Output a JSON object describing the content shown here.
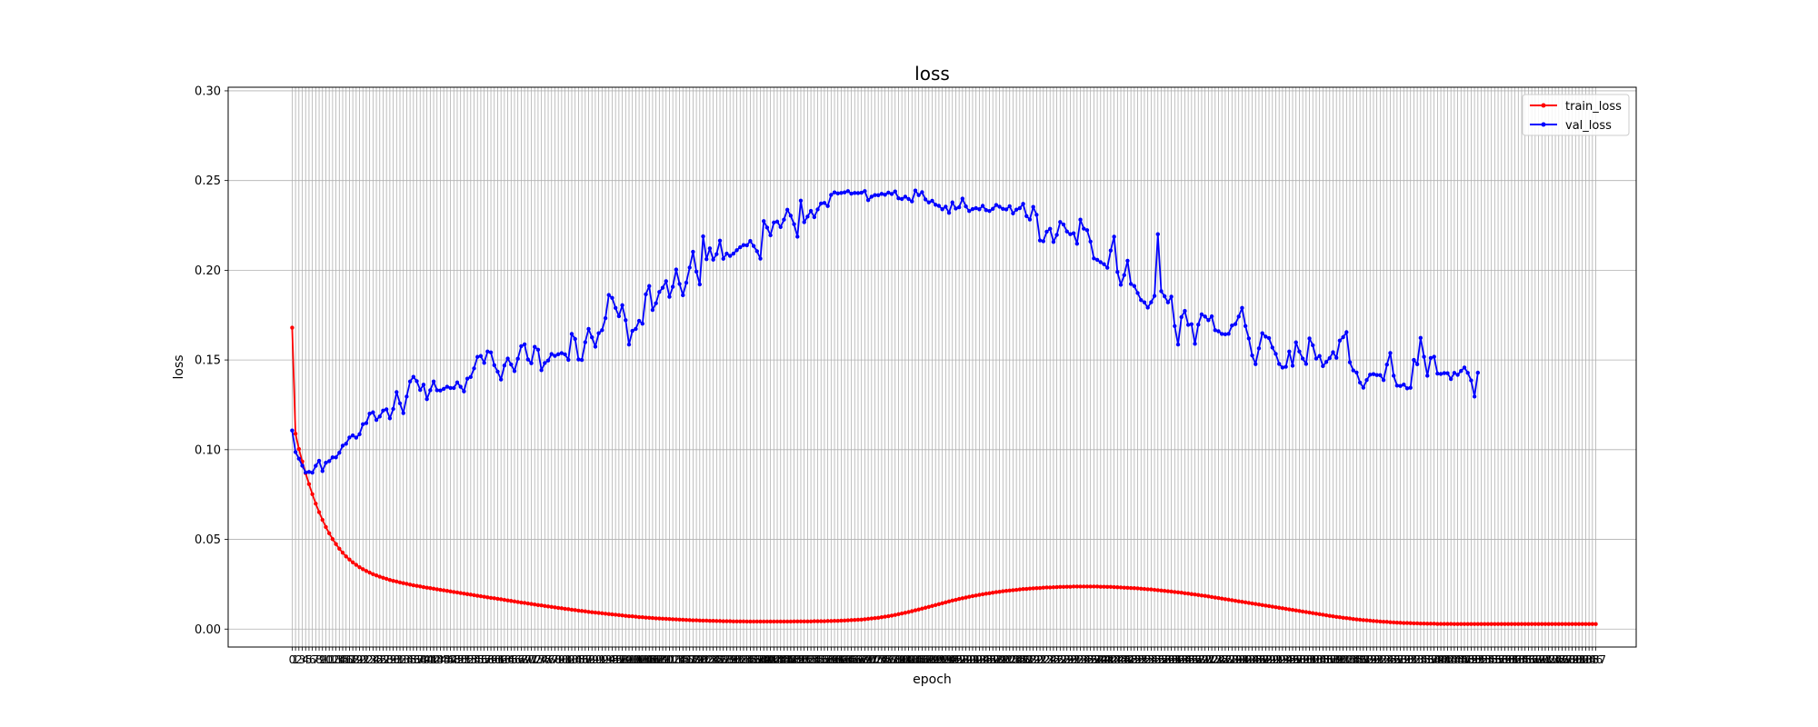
{
  "chart_data": {
    "type": "line",
    "title": "loss",
    "xlabel": "epoch",
    "ylabel": "loss",
    "xlim": [
      -19,
      399
    ],
    "ylim": [
      -0.01,
      0.302
    ],
    "grid": true,
    "legend_position": "top-right",
    "yticks": [
      0.0,
      0.05,
      0.1,
      0.15,
      0.2,
      0.25,
      0.3
    ],
    "ytick_labels": [
      "0.00",
      "0.05",
      "0.10",
      "0.15",
      "0.20",
      "0.25",
      "0.30"
    ],
    "x_step": 1,
    "series": [
      {
        "name": "train_loss",
        "color": "#ff0000",
        "values": [
          0.168,
          0.1089,
          0.1004,
          0.0934,
          0.0869,
          0.0808,
          0.0752,
          0.0699,
          0.0652,
          0.0609,
          0.0569,
          0.0534,
          0.0502,
          0.0474,
          0.0448,
          0.0426,
          0.0405,
          0.0388,
          0.0372,
          0.0358,
          0.0345,
          0.0334,
          0.0324,
          0.0315,
          0.0306,
          0.0299,
          0.0292,
          0.0286,
          0.028,
          0.0274,
          0.0269,
          0.0265,
          0.026,
          0.0256,
          0.0252,
          0.0248,
          0.0244,
          0.0241,
          0.0238,
          0.0234,
          0.0231,
          0.0228,
          0.0225,
          0.0222,
          0.0219,
          0.0216,
          0.0213,
          0.021,
          0.0207,
          0.0204,
          0.0201,
          0.0198,
          0.0195,
          0.0192,
          0.0189,
          0.0186,
          0.0183,
          0.018,
          0.0177,
          0.0174,
          0.0172,
          0.0169,
          0.0166,
          0.0163,
          0.016,
          0.0157,
          0.0154,
          0.0151,
          0.0148,
          0.0146,
          0.0143,
          0.014,
          0.0137,
          0.0134,
          0.0132,
          0.0129,
          0.0126,
          0.0124,
          0.0121,
          0.0118,
          0.0116,
          0.0113,
          0.0111,
          0.0108,
          0.0106,
          0.0103,
          0.0101,
          0.0099,
          0.0096,
          0.0094,
          0.0092,
          0.009,
          0.0088,
          0.0086,
          0.0084,
          0.0082,
          0.008,
          0.0078,
          0.0076,
          0.0074,
          0.0072,
          0.0071,
          0.0069,
          0.0067,
          0.0066,
          0.0064,
          0.0063,
          0.0062,
          0.006,
          0.0059,
          0.0058,
          0.0057,
          0.0056,
          0.0055,
          0.0054,
          0.0053,
          0.0052,
          0.0051,
          0.005,
          0.0049,
          0.0049,
          0.0048,
          0.0047,
          0.0047,
          0.0046,
          0.0046,
          0.0045,
          0.0045,
          0.0044,
          0.0044,
          0.0044,
          0.0043,
          0.0043,
          0.0043,
          0.0043,
          0.0042,
          0.0042,
          0.0042,
          0.0042,
          0.0042,
          0.0042,
          0.0042,
          0.0042,
          0.0042,
          0.0042,
          0.0042,
          0.0042,
          0.0042,
          0.0042,
          0.0043,
          0.0043,
          0.0043,
          0.0043,
          0.0043,
          0.0043,
          0.0044,
          0.0044,
          0.0044,
          0.0044,
          0.0045,
          0.0045,
          0.0046,
          0.0046,
          0.0047,
          0.0048,
          0.0049,
          0.005,
          0.0051,
          0.0052,
          0.0053,
          0.0055,
          0.0057,
          0.0059,
          0.0061,
          0.0063,
          0.0066,
          0.0069,
          0.0072,
          0.0075,
          0.0079,
          0.0083,
          0.0087,
          0.0091,
          0.0095,
          0.01,
          0.0105,
          0.0109,
          0.0114,
          0.0119,
          0.0124,
          0.0129,
          0.0134,
          0.0139,
          0.0144,
          0.0149,
          0.0154,
          0.0159,
          0.0163,
          0.0168,
          0.0172,
          0.0176,
          0.018,
          0.0184,
          0.0187,
          0.0191,
          0.0194,
          0.0197,
          0.02,
          0.0203,
          0.0206,
          0.0208,
          0.0211,
          0.0213,
          0.0215,
          0.0217,
          0.0219,
          0.0221,
          0.0223,
          0.0224,
          0.0226,
          0.0227,
          0.0228,
          0.0229,
          0.0231,
          0.0232,
          0.0232,
          0.0233,
          0.0234,
          0.0235,
          0.0235,
          0.0236,
          0.0236,
          0.0237,
          0.0237,
          0.0237,
          0.0237,
          0.0237,
          0.0237,
          0.0237,
          0.0237,
          0.0236,
          0.0236,
          0.0235,
          0.0235,
          0.0234,
          0.0233,
          0.0232,
          0.0231,
          0.023,
          0.0229,
          0.0228,
          0.0227,
          0.0225,
          0.0224,
          0.0222,
          0.0221,
          0.0219,
          0.0217,
          0.0215,
          0.0213,
          0.0211,
          0.0209,
          0.0207,
          0.0205,
          0.0203,
          0.02,
          0.0198,
          0.0195,
          0.0193,
          0.019,
          0.0187,
          0.0185,
          0.0182,
          0.0179,
          0.0176,
          0.0173,
          0.017,
          0.0167,
          0.0164,
          0.0161,
          0.0158,
          0.0155,
          0.0152,
          0.0149,
          0.0146,
          0.0143,
          0.014,
          0.0137,
          0.0134,
          0.0131,
          0.0128,
          0.0125,
          0.0122,
          0.0119,
          0.0116,
          0.0113,
          0.011,
          0.0107,
          0.0104,
          0.0101,
          0.0098,
          0.0095,
          0.0092,
          0.0089,
          0.0086,
          0.0083,
          0.008,
          0.0077,
          0.0074,
          0.0071,
          0.0068,
          0.0066,
          0.0063,
          0.0061,
          0.0059,
          0.0056,
          0.0054,
          0.0052,
          0.005,
          0.0049,
          0.0047,
          0.0045,
          0.0044,
          0.0042,
          0.0041,
          0.004,
          0.0038,
          0.0037,
          0.0036,
          0.0035,
          0.0034,
          0.0034,
          0.0033,
          0.0032,
          0.0032,
          0.0031,
          0.0031,
          0.003,
          0.003,
          0.003,
          0.0029,
          0.0029,
          0.0029,
          0.0029,
          0.0029,
          0.0028,
          0.0028,
          0.0028,
          0.0028,
          0.0028,
          0.0028,
          0.0028,
          0.0028,
          0.0028,
          0.0028,
          0.0028,
          0.0028,
          0.0028,
          0.0028,
          0.0028,
          0.0028,
          0.0028,
          0.0028,
          0.0028,
          0.0028,
          0.0028,
          0.0028,
          0.0028,
          0.0028,
          0.0028,
          0.0028,
          0.0028,
          0.0028,
          0.0028,
          0.0028,
          0.0028,
          0.0028,
          0.0028,
          0.0028,
          0.0028,
          0.0028,
          0.0028,
          0.0028,
          0.0028,
          0.0028,
          0.0028,
          0.0028,
          0.0028
        ]
      },
      {
        "name": "val_loss",
        "color": "#0000ff",
        "values": [
          0.1107,
          0.0987,
          0.095,
          0.0911,
          0.0873,
          0.0876,
          0.0872,
          0.091,
          0.0938,
          0.0881,
          0.0927,
          0.0936,
          0.0957,
          0.0957,
          0.0983,
          0.1022,
          0.1033,
          0.1068,
          0.1079,
          0.1067,
          0.1086,
          0.1142,
          0.1148,
          0.1201,
          0.1208,
          0.1166,
          0.1185,
          0.1218,
          0.1225,
          0.1175,
          0.1227,
          0.1321,
          0.1258,
          0.1204,
          0.1296,
          0.138,
          0.1406,
          0.1382,
          0.1333,
          0.1362,
          0.1282,
          0.1331,
          0.138,
          0.1331,
          0.133,
          0.1339,
          0.1351,
          0.1344,
          0.1344,
          0.1375,
          0.1351,
          0.1325,
          0.1396,
          0.1405,
          0.1453,
          0.1517,
          0.1522,
          0.1484,
          0.1547,
          0.1542,
          0.1471,
          0.1435,
          0.1391,
          0.1469,
          0.1508,
          0.1475,
          0.1438,
          0.1507,
          0.1577,
          0.1587,
          0.1503,
          0.1482,
          0.1573,
          0.1557,
          0.1443,
          0.1483,
          0.1497,
          0.1533,
          0.1523,
          0.1532,
          0.1538,
          0.1531,
          0.1501,
          0.1645,
          0.1617,
          0.1503,
          0.15,
          0.1599,
          0.1673,
          0.1626,
          0.1574,
          0.1649,
          0.1666,
          0.1733,
          0.1862,
          0.1846,
          0.179,
          0.1744,
          0.1805,
          0.1722,
          0.1586,
          0.1662,
          0.1673,
          0.1718,
          0.1702,
          0.1866,
          0.1912,
          0.1779,
          0.1816,
          0.1879,
          0.1902,
          0.1939,
          0.1852,
          0.1908,
          0.2004,
          0.1924,
          0.1861,
          0.1931,
          0.2015,
          0.2103,
          0.1992,
          0.1921,
          0.2189,
          0.2062,
          0.2122,
          0.2059,
          0.209,
          0.2165,
          0.2064,
          0.2093,
          0.208,
          0.2093,
          0.2112,
          0.2128,
          0.214,
          0.2139,
          0.2163,
          0.2135,
          0.2106,
          0.2065,
          0.2274,
          0.2238,
          0.2195,
          0.2266,
          0.2271,
          0.2241,
          0.2282,
          0.2337,
          0.2304,
          0.2257,
          0.2187,
          0.2388,
          0.2268,
          0.2299,
          0.2331,
          0.2296,
          0.2339,
          0.2372,
          0.2375,
          0.2358,
          0.242,
          0.2434,
          0.2428,
          0.2431,
          0.2434,
          0.2441,
          0.2427,
          0.2431,
          0.243,
          0.2432,
          0.2441,
          0.2391,
          0.241,
          0.2419,
          0.2418,
          0.2426,
          0.2421,
          0.2433,
          0.2425,
          0.2439,
          0.2401,
          0.2397,
          0.241,
          0.2397,
          0.2384,
          0.2444,
          0.2419,
          0.2435,
          0.2395,
          0.2378,
          0.2387,
          0.2365,
          0.2359,
          0.234,
          0.2354,
          0.232,
          0.2378,
          0.2344,
          0.2351,
          0.2399,
          0.2356,
          0.233,
          0.2341,
          0.2346,
          0.234,
          0.2359,
          0.2335,
          0.233,
          0.2342,
          0.2364,
          0.2354,
          0.2342,
          0.2339,
          0.2357,
          0.2317,
          0.2338,
          0.2346,
          0.237,
          0.2302,
          0.2283,
          0.2353,
          0.2309,
          0.2166,
          0.2162,
          0.2215,
          0.2231,
          0.2158,
          0.2197,
          0.2269,
          0.2255,
          0.2216,
          0.2201,
          0.2206,
          0.2148,
          0.2282,
          0.2232,
          0.2223,
          0.216,
          0.2066,
          0.2058,
          0.2045,
          0.2034,
          0.2014,
          0.211,
          0.2187,
          0.199,
          0.1919,
          0.1973,
          0.2053,
          0.1924,
          0.1912,
          0.1873,
          0.1834,
          0.1821,
          0.1792,
          0.1822,
          0.1857,
          0.2201,
          0.1883,
          0.1855,
          0.1821,
          0.1853,
          0.1689,
          0.1586,
          0.1739,
          0.1773,
          0.1696,
          0.1699,
          0.159,
          0.1697,
          0.1754,
          0.1742,
          0.1722,
          0.1743,
          0.1666,
          0.166,
          0.1645,
          0.1643,
          0.1646,
          0.1692,
          0.17,
          0.1742,
          0.179,
          0.1689,
          0.162,
          0.1525,
          0.1477,
          0.1565,
          0.1649,
          0.163,
          0.1622,
          0.1569,
          0.1534,
          0.1478,
          0.1458,
          0.1462,
          0.1547,
          0.1468,
          0.1598,
          0.1547,
          0.1508,
          0.1478,
          0.162,
          0.1582,
          0.1508,
          0.1522,
          0.1466,
          0.1489,
          0.151,
          0.1543,
          0.1512,
          0.1608,
          0.1627,
          0.1655,
          0.1487,
          0.1442,
          0.143,
          0.1374,
          0.1346,
          0.1388,
          0.1418,
          0.1421,
          0.1416,
          0.1415,
          0.1388,
          0.1474,
          0.1539,
          0.1412,
          0.1357,
          0.1355,
          0.1363,
          0.1342,
          0.1345,
          0.15,
          0.1476,
          0.1623,
          0.1518,
          0.1412,
          0.1511,
          0.1518,
          0.1424,
          0.1422,
          0.1427,
          0.1426,
          0.1394,
          0.1428,
          0.1417,
          0.1439,
          0.1458,
          0.1428,
          0.1386,
          0.1296,
          0.1429
        ]
      }
    ]
  }
}
